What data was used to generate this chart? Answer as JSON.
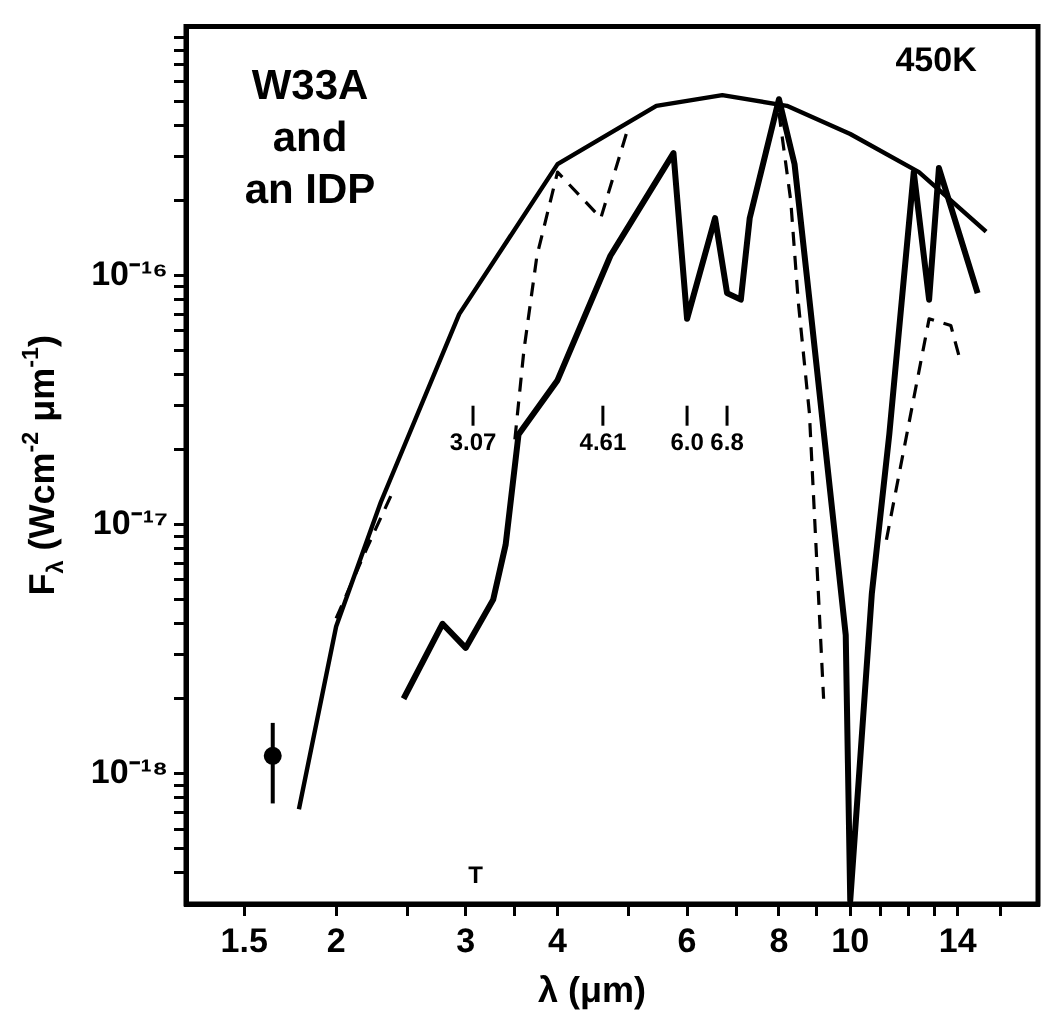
{
  "chart_data": {
    "type": "line",
    "title": "W33A\nand\nan IDP",
    "xlabel": "λ (μm)",
    "ylabel": "F$_{λ}$ (Wcm$^{-2}$ μm$^{-1}$)",
    "log": "xy",
    "grid": false,
    "legend": false,
    "xlim": [
      1.25,
      18
    ],
    "xticks": [
      1.5,
      2,
      {
        "value": 2.5,
        "label": null
      },
      3,
      {
        "value": 3.5,
        "label": null
      },
      4,
      {
        "value": 5,
        "label": null
      },
      6,
      {
        "value": 7,
        "label": null
      },
      8,
      {
        "value": 9,
        "label": null
      },
      10,
      {
        "value": 11,
        "label": null
      },
      {
        "value": 12,
        "label": null
      },
      {
        "value": 13,
        "label": null
      },
      14,
      {
        "value": 16,
        "label": null
      }
    ],
    "ylim": [
      3e-19,
      1e-15
    ],
    "yticks": [
      {
        "value": 4e-19,
        "label": null
      },
      {
        "value": 5e-19,
        "label": null
      },
      {
        "value": 6e-19,
        "label": null
      },
      {
        "value": 7e-19,
        "label": null
      },
      {
        "value": 8e-19,
        "label": null
      },
      {
        "value": 9e-19,
        "label": null
      },
      {
        "value": 1e-18,
        "label": "10⁻¹⁸"
      },
      {
        "value": 2e-18,
        "label": null
      },
      {
        "value": 3e-18,
        "label": null
      },
      {
        "value": 4e-18,
        "label": null
      },
      {
        "value": 5e-18,
        "label": null
      },
      {
        "value": 6e-18,
        "label": null
      },
      {
        "value": 7e-18,
        "label": null
      },
      {
        "value": 8e-18,
        "label": null
      },
      {
        "value": 9e-18,
        "label": null
      },
      {
        "value": 1e-17,
        "label": "10⁻¹⁷"
      },
      {
        "value": 2e-17,
        "label": null
      },
      {
        "value": 3e-17,
        "label": null
      },
      {
        "value": 4e-17,
        "label": null
      },
      {
        "value": 5e-17,
        "label": null
      },
      {
        "value": 6e-17,
        "label": null
      },
      {
        "value": 7e-17,
        "label": null
      },
      {
        "value": 8e-17,
        "label": null
      },
      {
        "value": 9e-17,
        "label": null
      },
      {
        "value": 1e-16,
        "label": "10⁻¹⁶"
      },
      {
        "value": 2e-16,
        "label": null
      },
      {
        "value": 3e-16,
        "label": null
      },
      {
        "value": 4e-16,
        "label": null
      },
      {
        "value": 5e-16,
        "label": null
      },
      {
        "value": 6e-16,
        "label": null
      },
      {
        "value": 7e-16,
        "label": null
      },
      {
        "value": 8e-16,
        "label": null
      },
      {
        "value": 9e-16,
        "label": null
      }
    ],
    "series": [
      {
        "name": "450K",
        "color": "#000000",
        "line_style": "solid",
        "marker": "none",
        "x": [
          1.78,
          2.0,
          2.3,
          2.94,
          4.0,
          5.45,
          6.7,
          8.2,
          10.0,
          12.4,
          15.3
        ],
        "values": [
          7.2e-19,
          3.9e-18,
          1.23e-17,
          7e-17,
          2.8e-16,
          4.8e-16,
          5.3e-16,
          4.8e-16,
          3.7e-16,
          2.6e-16,
          1.5e-16
        ]
      },
      {
        "color": "#000000",
        "line_style": "solid",
        "marker": "none",
        "x": [
          2.47,
          2.79,
          3.0,
          3.27,
          3.4,
          3.54,
          4.0,
          4.72,
          5.75,
          6.0,
          6.55,
          6.8,
          7.1,
          7.3,
          8.0,
          8.4,
          8.8,
          9.86,
          10.0,
          10.7,
          11.3,
          12.2,
          12.8,
          13.2,
          14.9
        ],
        "values": [
          2e-18,
          4e-18,
          3.2e-18,
          5e-18,
          8.3e-18,
          2.3e-17,
          3.8e-17,
          1.2e-16,
          3.1e-16,
          6.7e-17,
          1.7e-16,
          8.5e-17,
          8e-17,
          1.7e-16,
          5.1e-16,
          2.8e-16,
          8e-17,
          3.6e-18,
          3.1e-19,
          5.3e-18,
          2.3e-17,
          2.6e-16,
          8e-17,
          2.7e-16,
          8.5e-17
        ]
      },
      {
        "color": "#000000",
        "line_style": "dashed",
        "marker": "none",
        "x": [
          2.0,
          2.2,
          2.4,
          2.9,
          3.5,
          3.6,
          3.75,
          4.0,
          4.58,
          5.0,
          6.5,
          8.0,
          8.3,
          8.5,
          8.8,
          9.2,
          10.5,
          11.2,
          12.8,
          13.7,
          14.1
        ],
        "values": [
          4.2e-18,
          8e-18,
          1.4e-17,
          null,
          2.2e-17,
          5e-17,
          1.2e-16,
          2.6e-16,
          1.7e-16,
          4e-16,
          null,
          4.5e-16,
          2e-16,
          7.8e-17,
          2.8e-17,
          2e-18,
          null,
          8.7e-18,
          6.7e-17,
          6.3e-17,
          4.6e-17
        ]
      },
      {
        "type": "scatter",
        "color": "#000000",
        "marker": "circle",
        "x": [
          1.64
        ],
        "values": [
          1.18e-18
        ],
        "errors": [
          [
            7.6e-19,
            1.6e-18
          ]
        ]
      }
    ],
    "ref_lines": [
      {
        "axis": "x",
        "value": 3.07,
        "label": "3.07"
      },
      {
        "axis": "x",
        "value": 4.61,
        "label": "4.61"
      },
      {
        "axis": "x",
        "value": 6.0,
        "label": "6.0"
      },
      {
        "axis": "x",
        "value": 6.8,
        "label": "6.8"
      }
    ],
    "annotations": [
      "T"
    ]
  }
}
